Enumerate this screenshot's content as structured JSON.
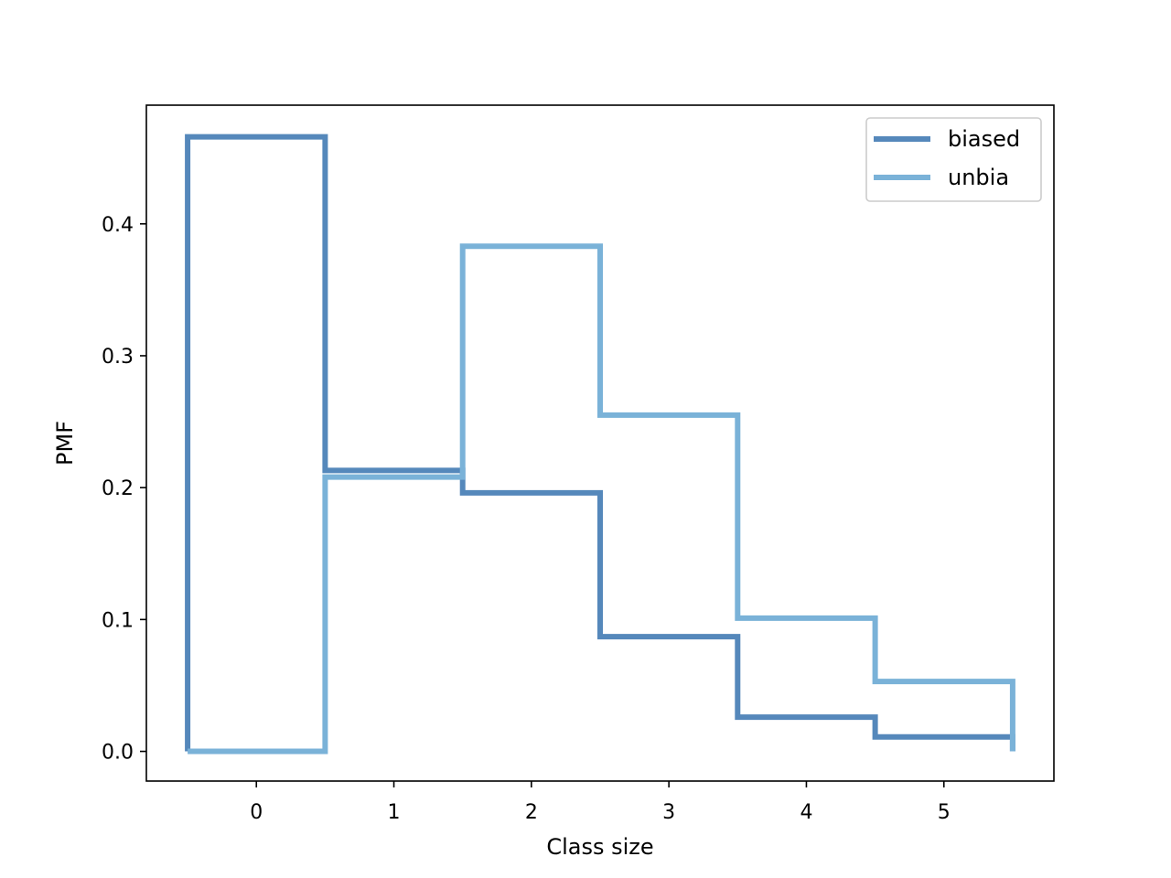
{
  "chart_data": {
    "type": "line",
    "drawstyle": "steps-mid",
    "xlabel": "Class size",
    "ylabel": "PMF",
    "xlim": [
      -0.8,
      5.8
    ],
    "ylim": [
      -0.0225,
      0.49
    ],
    "xticks": [
      0,
      1,
      2,
      3,
      4,
      5
    ],
    "xtick_labels": [
      "0",
      "1",
      "2",
      "3",
      "4",
      "5"
    ],
    "yticks": [
      0.0,
      0.1,
      0.2,
      0.3,
      0.4
    ],
    "ytick_labels": [
      "0.0",
      "0.1",
      "0.2",
      "0.3",
      "0.4"
    ],
    "grid": false,
    "legend_position": "top-right",
    "series": [
      {
        "name": "biased",
        "color": "#5588bb",
        "x": [
          0,
          1,
          2,
          3,
          4,
          5
        ],
        "values": [
          0.466,
          0.213,
          0.196,
          0.087,
          0.026,
          0.011
        ]
      },
      {
        "name": "unbia",
        "color": "#7ab2d8",
        "x": [
          0,
          1,
          2,
          3,
          4,
          5
        ],
        "values": [
          0.0,
          0.208,
          0.383,
          0.255,
          0.101,
          0.053
        ]
      }
    ]
  }
}
